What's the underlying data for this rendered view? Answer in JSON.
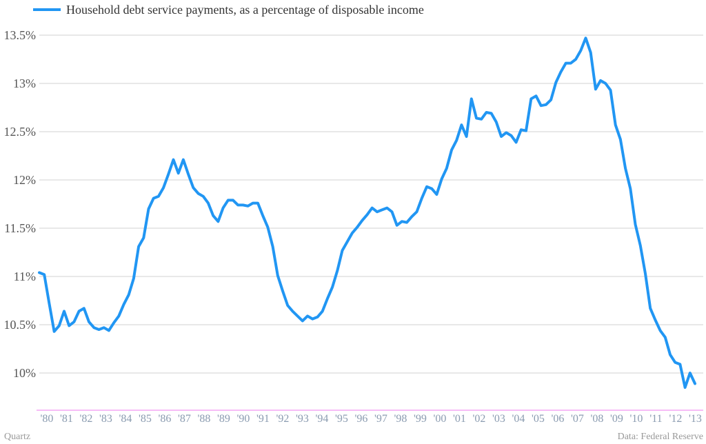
{
  "chart_data": {
    "type": "line",
    "title": "",
    "xlabel": "",
    "ylabel": "",
    "series": [
      {
        "name": "Household debt service payments, as a percentage of disposable income",
        "color": "#2196F3",
        "x_start": 1980.0,
        "x_step": 0.25,
        "values": [
          11.04,
          11.02,
          10.72,
          10.43,
          10.49,
          10.64,
          10.49,
          10.53,
          10.64,
          10.67,
          10.53,
          10.47,
          10.45,
          10.47,
          10.44,
          10.52,
          10.59,
          10.71,
          10.81,
          10.98,
          11.31,
          11.4,
          11.7,
          11.81,
          11.83,
          11.92,
          12.06,
          12.21,
          12.07,
          12.21,
          12.06,
          11.92,
          11.86,
          11.83,
          11.76,
          11.63,
          11.57,
          11.71,
          11.79,
          11.79,
          11.74,
          11.74,
          11.73,
          11.76,
          11.76,
          11.63,
          11.51,
          11.31,
          11.01,
          10.85,
          10.7,
          10.64,
          10.59,
          10.54,
          10.59,
          10.56,
          10.58,
          10.64,
          10.77,
          10.89,
          11.06,
          11.27,
          11.36,
          11.45,
          11.51,
          11.58,
          11.64,
          11.71,
          11.67,
          11.69,
          11.71,
          11.67,
          11.53,
          11.57,
          11.56,
          11.62,
          11.67,
          11.81,
          11.93,
          11.91,
          11.85,
          12.01,
          12.12,
          12.31,
          12.41,
          12.57,
          12.45,
          12.84,
          12.64,
          12.63,
          12.7,
          12.69,
          12.6,
          12.45,
          12.49,
          12.46,
          12.39,
          12.52,
          12.51,
          12.84,
          12.87,
          12.77,
          12.78,
          12.83,
          13.01,
          13.12,
          13.21,
          13.21,
          13.25,
          13.34,
          13.47,
          13.32,
          12.94,
          13.03,
          13.0,
          12.93,
          12.57,
          12.42,
          12.12,
          11.91,
          11.54,
          11.32,
          11.03,
          10.67,
          10.55,
          10.44,
          10.37,
          10.19,
          10.11,
          10.09,
          9.85,
          10.0,
          9.89
        ]
      }
    ],
    "y_ticks": [
      10,
      10.5,
      11,
      11.5,
      12,
      12.5,
      13,
      13.5
    ],
    "y_tick_labels": [
      "10%",
      "10.5%",
      "11%",
      "11.5%",
      "12%",
      "12.5%",
      "13%",
      "13.5%"
    ],
    "x_tick_labels": [
      "'80",
      "'81",
      "'82",
      "'83",
      "'84",
      "'85",
      "'86",
      "'87",
      "'88",
      "'89",
      "'90",
      "'91",
      "'92",
      "'93",
      "'94",
      "'95",
      "'96",
      "'97",
      "'98",
      "'99",
      "'00",
      "'01",
      "'02",
      "'03",
      "'04",
      "'05",
      "'06",
      "'07",
      "'08",
      "'09",
      "'10",
      "'11",
      "'12",
      "'13"
    ],
    "ylim": [
      9.61,
      13.58
    ],
    "xlim": [
      1980,
      2013
    ],
    "grid": true,
    "legend_position": "top-left"
  },
  "footer": {
    "brand": "Quartz",
    "source": "Data:  Federal Reserve"
  }
}
